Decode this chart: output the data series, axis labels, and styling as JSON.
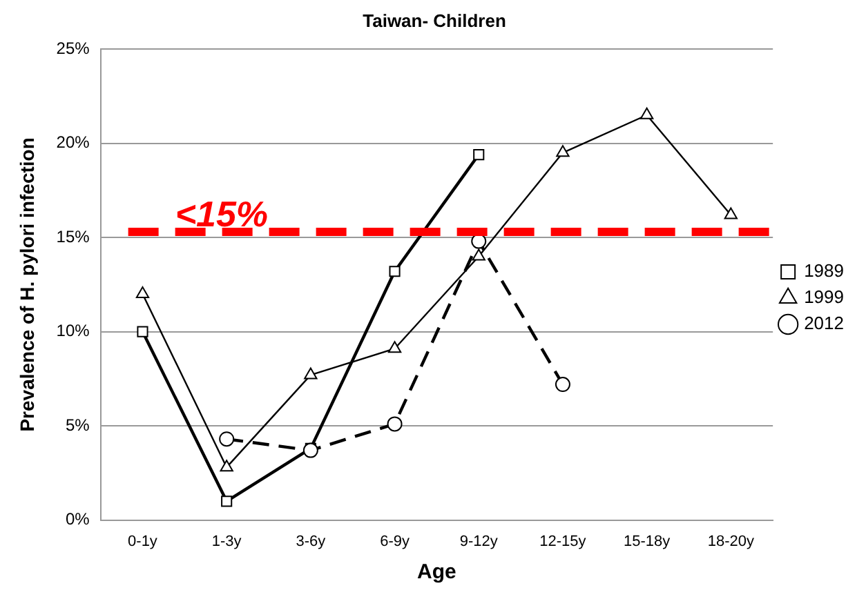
{
  "chart_data": {
    "type": "line",
    "title": "Taiwan- Children",
    "xlabel": "Age",
    "ylabel": "Prevalence of H. pylori infection",
    "categories": [
      "0-1y",
      "1-3y",
      "3-6y",
      "6-9y",
      "9-12y",
      "12-15y",
      "15-18y",
      "18-20y"
    ],
    "series": [
      {
        "name": "1989",
        "color": "#000000",
        "marker": "square",
        "line_style": "solid",
        "values": [
          10,
          1,
          3.8,
          13.2,
          19.4,
          null,
          null,
          null
        ]
      },
      {
        "name": "1999",
        "color": "#000000",
        "marker": "triangle",
        "line_style": "solid",
        "values": [
          12,
          2.8,
          7.7,
          9.1,
          14,
          19.5,
          21.5,
          16.2
        ]
      },
      {
        "name": "2012",
        "color": "#000000",
        "marker": "circle",
        "line_style": "dashed",
        "values": [
          null,
          4.3,
          3.7,
          5.1,
          14.8,
          7.2,
          null,
          null
        ]
      }
    ],
    "ylim": [
      0,
      25
    ],
    "yticks": [
      {
        "value": 0,
        "label": "0%"
      },
      {
        "value": 5,
        "label": "5%"
      },
      {
        "value": 10,
        "label": "10%"
      },
      {
        "value": 15,
        "label": "15%"
      },
      {
        "value": 20,
        "label": "20%"
      },
      {
        "value": 25,
        "label": "25%"
      }
    ],
    "grid": "y",
    "legend": "right",
    "ref_lines": [
      {
        "axis": "y",
        "value": 15.3,
        "label": "<15%",
        "color": "#ff0000",
        "line_style": "dashed"
      }
    ]
  }
}
